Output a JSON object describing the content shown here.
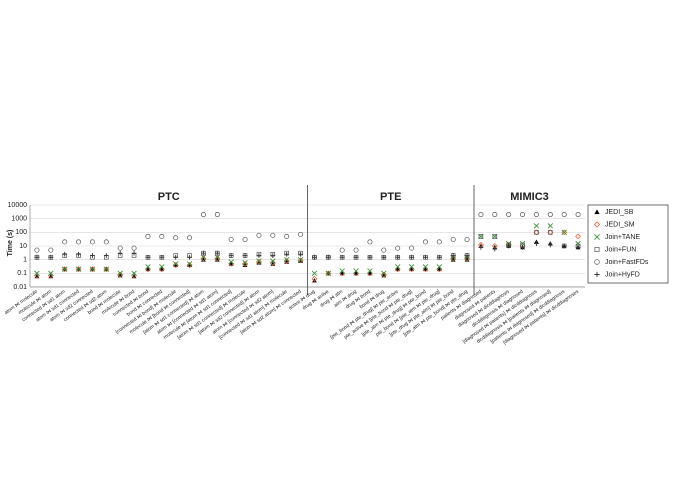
{
  "chart_data": {
    "type": "scatter",
    "y_label": "Time (s)",
    "log_scale": true,
    "ylim": [
      0.01,
      10000
    ],
    "yticks": [
      0.01,
      0.1,
      1,
      10,
      100,
      1000,
      10000
    ],
    "grid": true,
    "panels": [
      {
        "title": "PTC",
        "categories": [
          "atom ⋈ molecule",
          "molecule ⋈ atom",
          "connected ⋈ sd1 atom",
          "atom ⋈ sd1 connected",
          "atom ⋈ sd2 connected",
          "connected ⋈ sd2 atom",
          "bond ⋈ molecule",
          "molecule ⋈ bond",
          "connected ⋈ bond",
          "bond ⋈ connected",
          "[connected ⋈ bond] ⋈ molecule",
          "molecule ⋈ [bond ⋈ connected]",
          "[atom ⋈ sd1 connected] ⋈ atom",
          "atom ⋈ [connected ⋈ sd1 atom]",
          "molecule ⋈ [atom ⋈ sd1 connected]",
          "[atom ⋈ sd1 connected] ⋈ molecule",
          "[atom ⋈ sd2 connected] ⋈ atom",
          "atom ⋈ [connected ⋈ sd2 atom]",
          "[connected ⋈ sd1 atom] ⋈ molecule",
          "[atom ⋈ sd2 atom] ⋈ connected"
        ]
      },
      {
        "title": "PTE",
        "categories": [
          "active ⋈ drug",
          "drug ⋈ active",
          "drug ⋈ atm",
          "atm ⋈ drug",
          "drug ⋈ bond",
          "bond ⋈ drug",
          "[pte_bond ⋈ pte_drug] ⋈ pte_active",
          "pte_active ⋈ [pte_bond ⋈ pte_drug]",
          "[pte_atm ⋈ pte_drug] ⋈ pte_bond",
          "pte_bond ⋈ [pte_atm ⋈ pte_drug]",
          "[pte_drug ⋈ pte_atm] ⋈ pte_bond",
          "[pte_atm ⋈ pte_bond] ⋈ pte_drug"
        ]
      },
      {
        "title": "MIMIC3",
        "categories": [
          "patients ⋈ diagnosed",
          "diagnosed ⋈ patients",
          "diagnosed ⋈ dicddiagnosis",
          "dicddiagnosis ⋈ diagnosed",
          "[diagnosed ⋈ patients] ⋈ dicddiagnosis",
          "dicddiagnosis ⋈ [patients ⋈ diagnosed]",
          "[patients ⋈ diagnosed] ⋈ dicddiagnosis",
          "[diagnosed ⋈ patients] ⋈ dicddiagnoses"
        ]
      }
    ],
    "series": [
      {
        "name": "JEDI_SB",
        "color": "#000000",
        "marker": "triangle",
        "values": [
          0.06,
          0.06,
          0.2,
          0.2,
          0.2,
          0.2,
          0.07,
          0.06,
          0.2,
          0.2,
          0.4,
          0.4,
          1,
          1,
          0.5,
          0.4,
          0.6,
          0.5,
          0.7,
          0.8,
          0.03,
          0.1,
          0.1,
          0.1,
          0.1,
          0.07,
          0.2,
          0.2,
          0.2,
          0.2,
          1,
          1,
          10,
          8,
          10,
          8,
          20,
          15,
          10,
          8
        ]
      },
      {
        "name": "JEDI_SM",
        "color": "#e8633a",
        "marker": "diamond",
        "values": [
          0.07,
          0.07,
          0.2,
          0.2,
          0.2,
          0.2,
          0.08,
          0.07,
          0.2,
          0.2,
          0.4,
          0.4,
          1.2,
          1.2,
          0.5,
          0.5,
          0.7,
          0.6,
          0.8,
          0.9,
          0.04,
          0.1,
          0.1,
          0.1,
          0.1,
          0.08,
          0.2,
          0.2,
          0.2,
          0.2,
          1.2,
          1.2,
          12,
          10,
          12,
          10,
          100,
          100,
          100,
          50
        ]
      },
      {
        "name": "Join+TANE",
        "color": "#3a8f3a",
        "marker": "x",
        "values": [
          0.1,
          0.1,
          0.2,
          0.2,
          0.2,
          0.2,
          0.1,
          0.1,
          0.3,
          0.3,
          0.5,
          0.5,
          1.5,
          1.5,
          0.7,
          0.6,
          0.8,
          0.8,
          1,
          1,
          0.1,
          0.1,
          0.15,
          0.15,
          0.15,
          0.1,
          0.3,
          0.3,
          0.3,
          0.3,
          1.5,
          1.5,
          50,
          50,
          15,
          15,
          300,
          300,
          100,
          15
        ]
      },
      {
        "name": "Join+FUN",
        "color": "#555555",
        "marker": "square",
        "values": [
          1.5,
          1.5,
          2,
          2,
          1.5,
          1.5,
          2,
          2,
          1.5,
          1.5,
          2,
          2,
          3,
          3,
          2,
          2,
          2.5,
          2.5,
          3,
          3,
          1.5,
          1.5,
          1.5,
          1.5,
          1.5,
          1.5,
          1.5,
          1.5,
          1.5,
          1.5,
          2,
          2,
          50,
          50,
          12,
          12,
          100,
          100,
          10,
          10
        ]
      },
      {
        "name": "Join+FastFDs",
        "color": "#555555",
        "marker": "circle",
        "values": [
          5,
          5,
          20,
          20,
          20,
          20,
          7,
          7,
          50,
          50,
          40,
          40,
          2000,
          2000,
          30,
          30,
          60,
          60,
          50,
          70,
          1.5,
          1.5,
          5,
          5,
          20,
          5,
          7,
          7,
          20,
          20,
          30,
          30,
          2000,
          2000,
          2000,
          2000,
          2000,
          2000,
          2000,
          2000
        ]
      },
      {
        "name": "Join+HyFD",
        "color": "#333333",
        "marker": "plus",
        "values": [
          1.5,
          1.5,
          2.5,
          2.5,
          2,
          2,
          3,
          3,
          1.5,
          1.5,
          1.5,
          1.5,
          3,
          3,
          2,
          2,
          2,
          2,
          2.5,
          2.5,
          1.5,
          1.5,
          1.5,
          1.5,
          1.5,
          1.5,
          1.5,
          1.5,
          1.5,
          1.5,
          2,
          2,
          8,
          6,
          10,
          8,
          15,
          12,
          10,
          8
        ]
      }
    ]
  }
}
